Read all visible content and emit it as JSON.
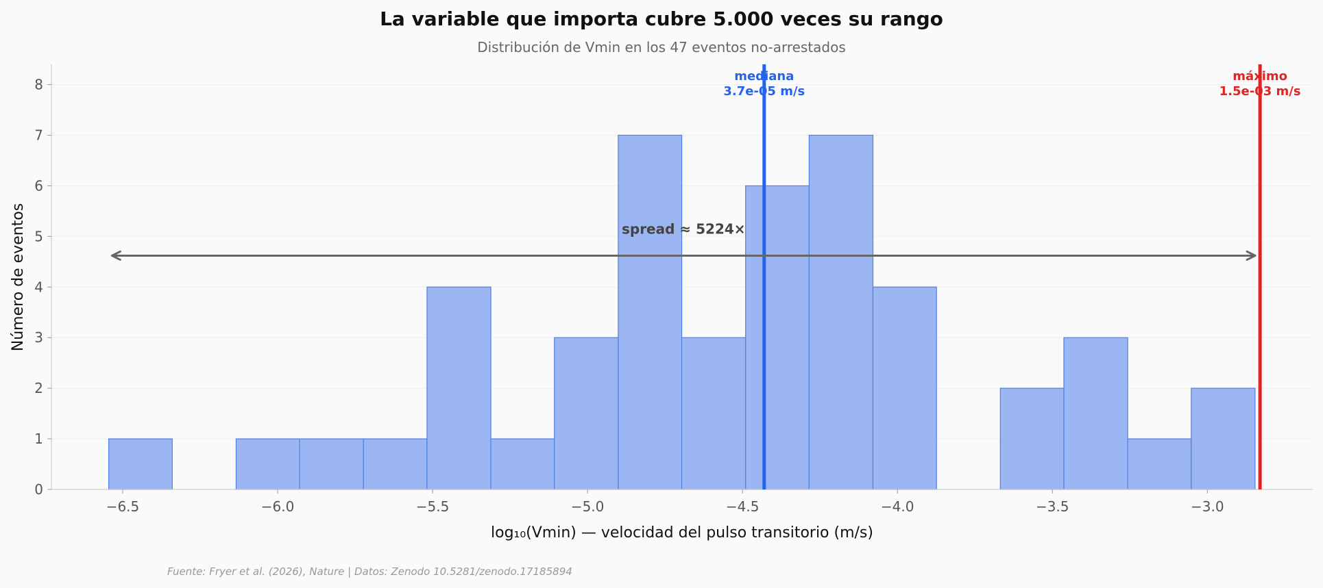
{
  "chart_data": {
    "type": "histogram",
    "title": "La variable que importa cubre 5.000 veces su rango",
    "subtitle": "Distribución de Vmin en los 47 eventos no-arrestados",
    "xlabel": "log₁₀(Vmin) — velocidad del pulso transitorio (m/s)",
    "ylabel": "Número de eventos",
    "xlim": [
      -6.73,
      -2.66
    ],
    "ylim": [
      0,
      8.4
    ],
    "xticks": [
      -6.5,
      -6.0,
      -5.5,
      -5.0,
      -4.5,
      -4.0,
      -3.5,
      -3.0
    ],
    "xtick_labels": [
      "−6.5",
      "−6.0",
      "−5.5",
      "−5.0",
      "−4.5",
      "−4.0",
      "−3.5",
      "−3.0"
    ],
    "yticks": [
      0,
      1,
      2,
      3,
      4,
      5,
      6,
      7,
      8
    ],
    "ytick_labels": [
      "0",
      "1",
      "2",
      "3",
      "4",
      "5",
      "6",
      "7",
      "8"
    ],
    "bins": [
      {
        "start": -6.545,
        "end": -6.34,
        "count": 1
      },
      {
        "start": -6.34,
        "end": -6.134,
        "count": 0
      },
      {
        "start": -6.134,
        "end": -5.929,
        "count": 1
      },
      {
        "start": -5.929,
        "end": -5.723,
        "count": 1
      },
      {
        "start": -5.723,
        "end": -5.518,
        "count": 1
      },
      {
        "start": -5.518,
        "end": -5.312,
        "count": 4
      },
      {
        "start": -5.312,
        "end": -5.107,
        "count": 1
      },
      {
        "start": -5.107,
        "end": -4.901,
        "count": 3
      },
      {
        "start": -4.901,
        "end": -4.696,
        "count": 7
      },
      {
        "start": -4.696,
        "end": -4.49,
        "count": 3
      },
      {
        "start": -4.49,
        "end": -4.285,
        "count": 6
      },
      {
        "start": -4.285,
        "end": -4.079,
        "count": 7
      },
      {
        "start": -4.079,
        "end": -3.874,
        "count": 4
      },
      {
        "start": -3.874,
        "end": -3.668,
        "count": 0
      },
      {
        "start": -3.668,
        "end": -3.463,
        "count": 2
      },
      {
        "start": -3.463,
        "end": -3.257,
        "count": 3
      },
      {
        "start": -3.257,
        "end": -3.052,
        "count": 1
      },
      {
        "start": -3.052,
        "end": -2.846,
        "count": 2
      }
    ],
    "markers": [
      {
        "x": -4.43,
        "label_line1": "mediana",
        "label_line2": "3.7e-05 m/s",
        "color": "#2563eb"
      },
      {
        "x": -2.83,
        "label_line1": "máximo",
        "label_line2": "1.5e-03 m/s",
        "color": "#dc2626"
      }
    ],
    "spread": {
      "x_start": -6.55,
      "x_end": -2.83,
      "y": 4.62,
      "label": "spread ≈ 5224×",
      "label_x": -4.69,
      "label_y": 5.05
    },
    "colors": {
      "bar_fill": "#9bb6f3",
      "bar_edge": "#4f7fe8",
      "grid": "#e8e8e8",
      "axis": "#cccccc",
      "arrow": "#666666"
    },
    "grid": "y"
  },
  "footer": {
    "source": "Fuente: Fryer et al. (2026), Nature | Datos: Zenodo 10.5281/zenodo.17185894"
  }
}
